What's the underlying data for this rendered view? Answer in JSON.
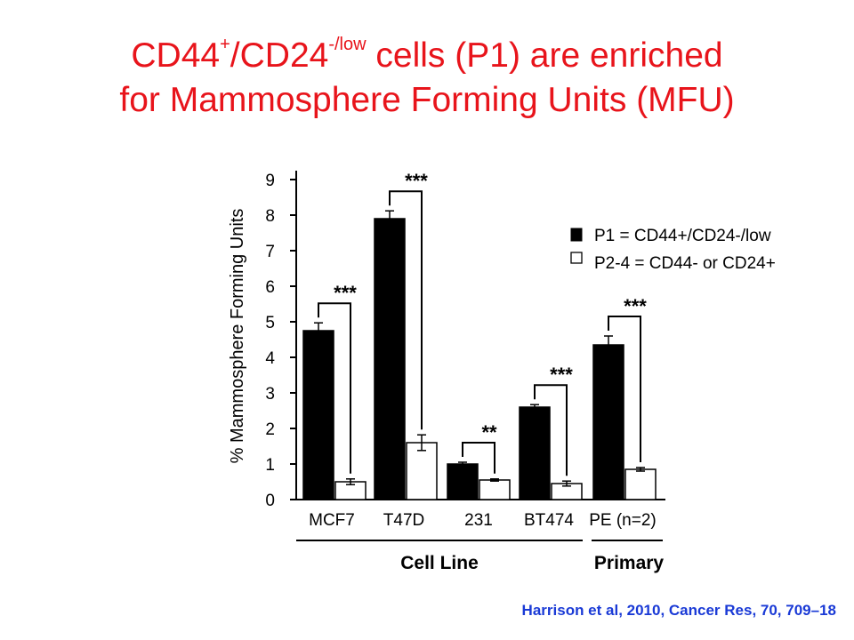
{
  "slide": {
    "title_part1": "CD44",
    "title_sup1": "+",
    "title_part2": "/CD24",
    "title_sup2": "-/low",
    "title_part3": " cells (P1) are enriched",
    "title_line2": "for Mammosphere Forming Units (MFU)",
    "citation": "Harrison et al, 2010, Cancer Res, 70, 709–18",
    "colors": {
      "title": "#e8141b",
      "citation": "#1a3ad6"
    }
  },
  "chart_data": {
    "type": "bar",
    "ylabel": "% Mammosphere Forming Units",
    "ylim": [
      0,
      9
    ],
    "yticks": [
      "0",
      "1",
      "2",
      "3",
      "4",
      "5",
      "6",
      "7",
      "8",
      "9"
    ],
    "categories": [
      "MCF7",
      "T47D",
      "231",
      "BT474",
      "PE (n=2)"
    ],
    "groups": [
      {
        "label": "Cell Line",
        "categories": [
          "MCF7",
          "T47D",
          "231",
          "BT474"
        ]
      },
      {
        "label": "Primary",
        "categories": [
          "PE (n=2)"
        ]
      }
    ],
    "series": [
      {
        "name": "P1 = CD44+/CD24-/low",
        "fill": "#000000",
        "values": [
          4.75,
          7.9,
          1.0,
          2.6,
          4.35
        ],
        "errors": [
          0.22,
          0.22,
          0.05,
          0.07,
          0.25
        ]
      },
      {
        "name": "P2-4 = CD44- or CD24+",
        "fill": "#ffffff",
        "values": [
          0.5,
          1.6,
          0.55,
          0.45,
          0.85
        ],
        "errors": [
          0.08,
          0.22,
          0.03,
          0.07,
          0.05
        ]
      }
    ],
    "significance": [
      "***",
      "***",
      "**",
      "***",
      "***"
    ],
    "legend_position": "top-right",
    "grid": false
  }
}
